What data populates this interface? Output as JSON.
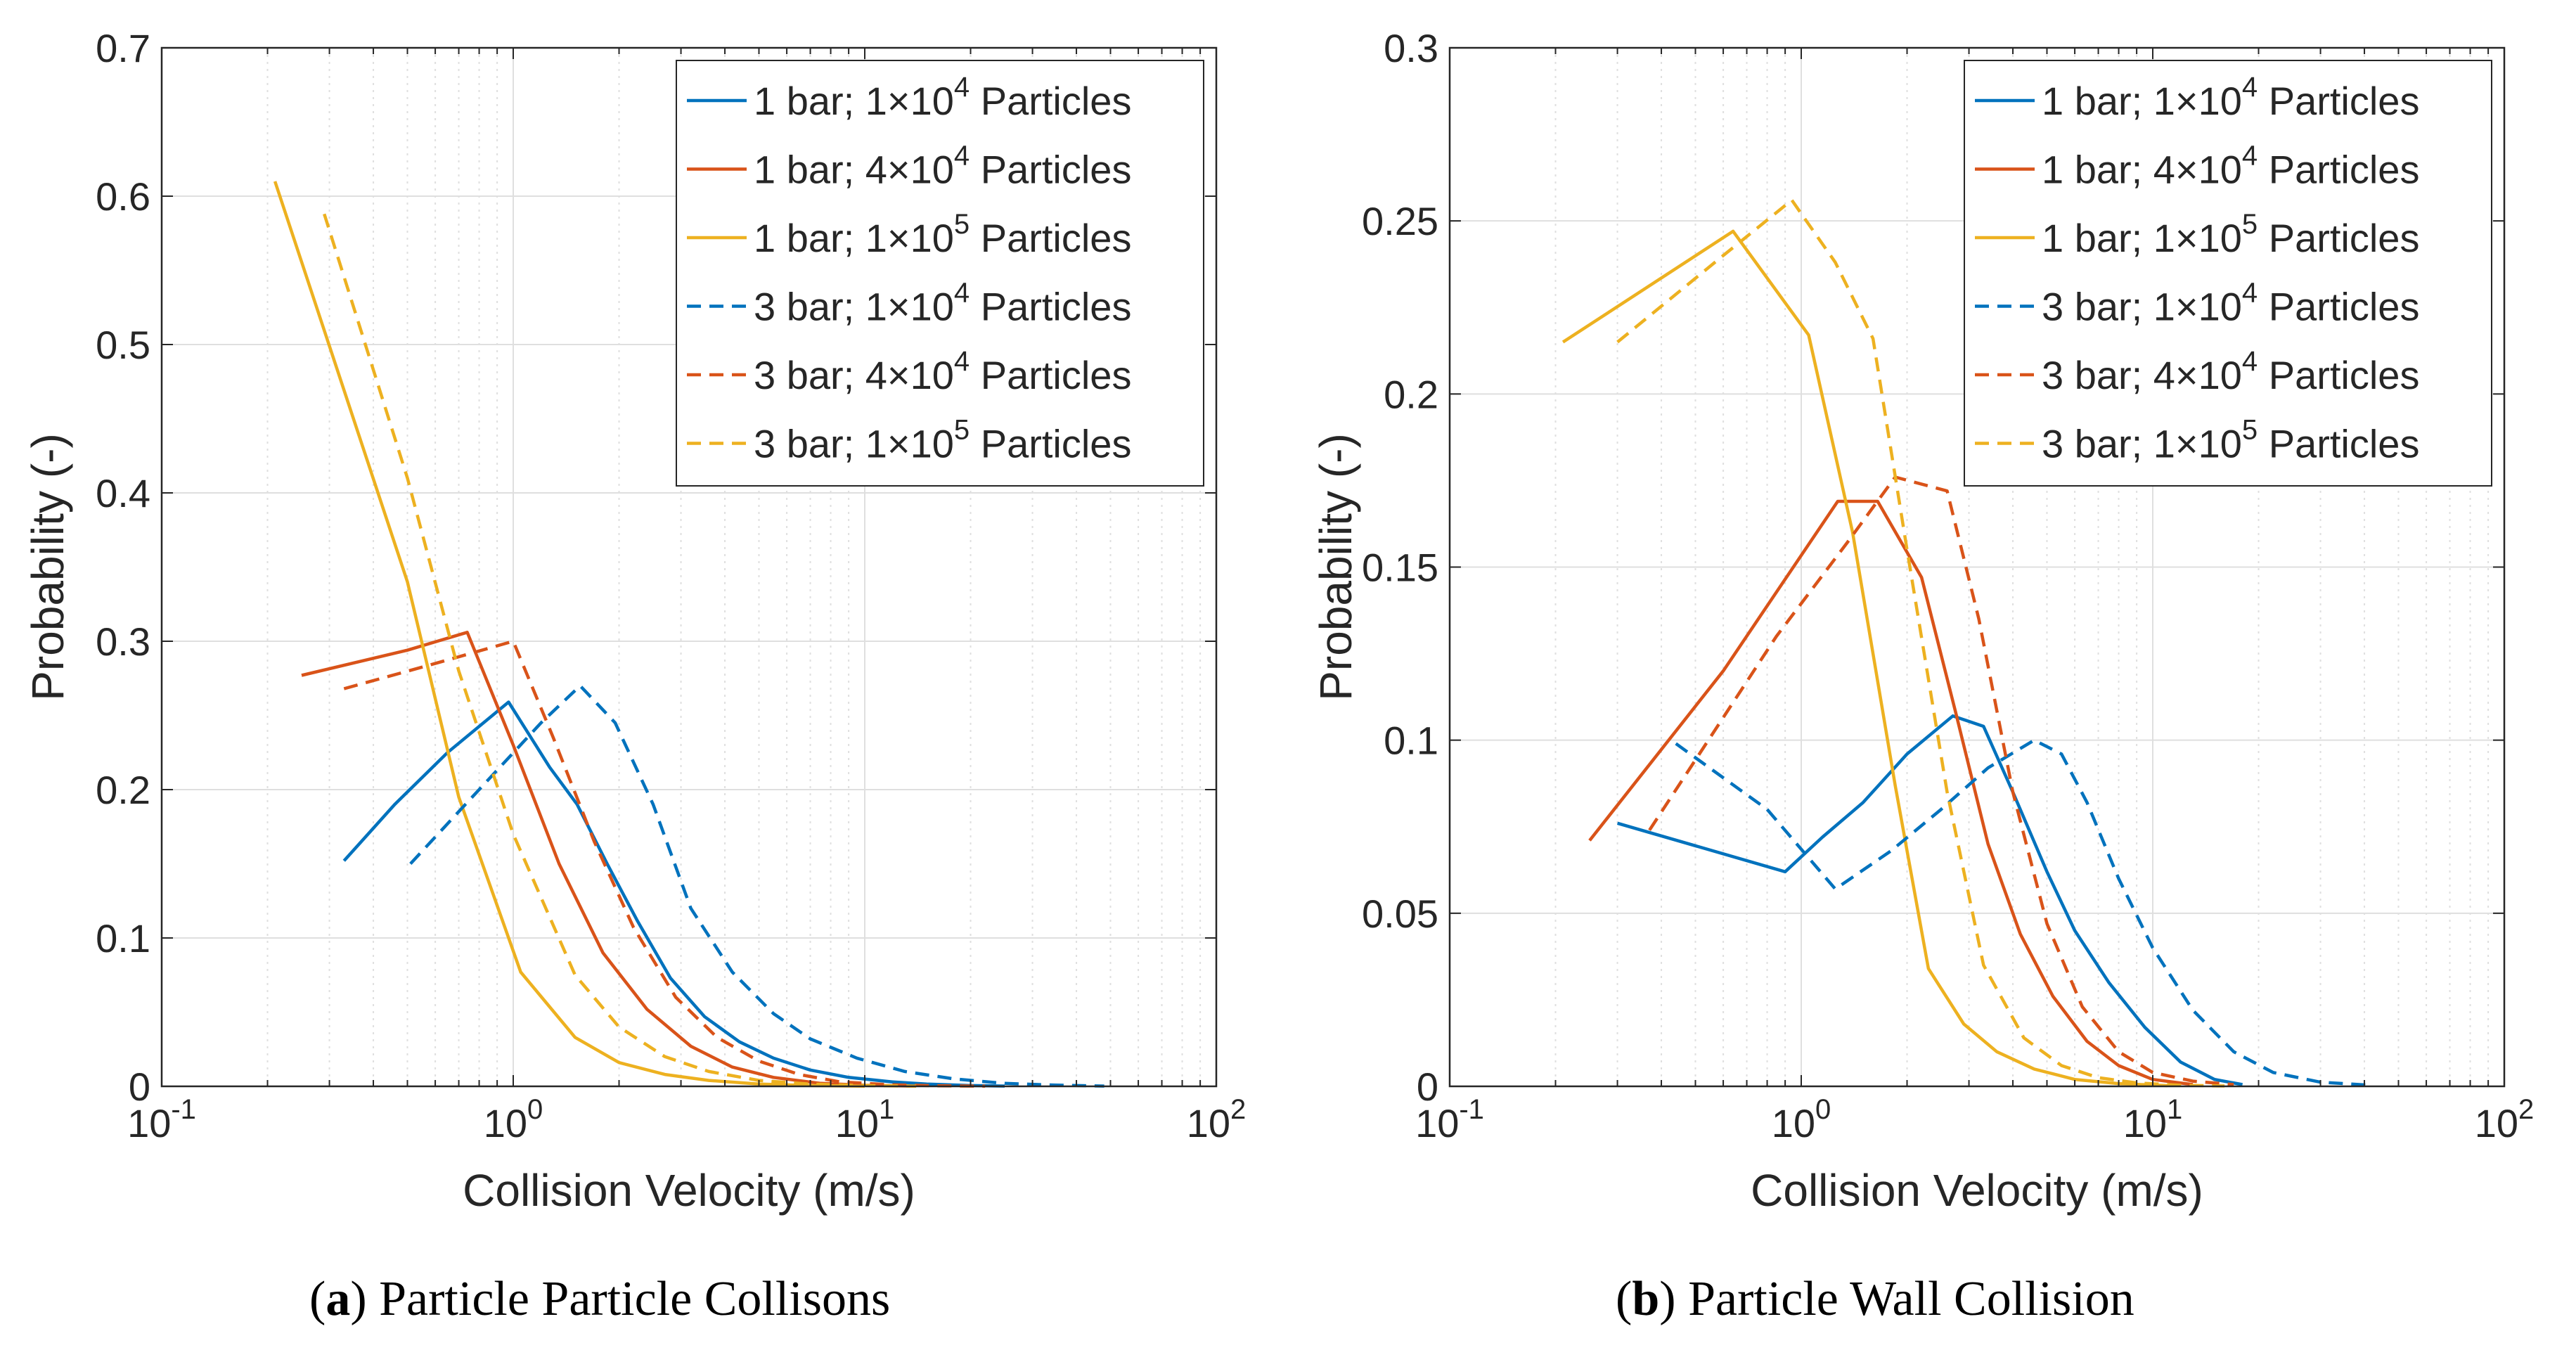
{
  "figure": {
    "captions": [
      {
        "label": "a",
        "text": "Particle Particle Collisons"
      },
      {
        "label": "b",
        "text": "Particle Wall Collision"
      }
    ]
  },
  "colors": {
    "blue": "#0072bd",
    "orange": "#d95319",
    "yellow": "#edb120",
    "axis": "#262626",
    "grid": "#dfdfdf"
  },
  "chart_data": [
    {
      "type": "line",
      "xscale": "log",
      "xlim": [
        0.1,
        100
      ],
      "ylim": [
        0,
        0.7
      ],
      "xticks": [
        0.1,
        1,
        10,
        100
      ],
      "xtick_labels": [
        {
          "base": "10",
          "exp": "-1"
        },
        {
          "base": "10",
          "exp": "0"
        },
        {
          "base": "10",
          "exp": "1"
        },
        {
          "base": "10",
          "exp": "2"
        }
      ],
      "yticks": [
        0,
        0.1,
        0.2,
        0.3,
        0.4,
        0.5,
        0.6,
        0.7
      ],
      "ytick_labels": [
        "0",
        "0.1",
        "0.2",
        "0.3",
        "0.4",
        "0.5",
        "0.6",
        "0.7"
      ],
      "xlabel": "Collision Velocity (m/s)",
      "ylabel": "Probability (-)",
      "grid": true,
      "legend_position": "top-right",
      "series": [
        {
          "name": "1 bar; 1×10^4 Particles",
          "legend": {
            "pre": "1 bar; 1×10",
            "exp": "4",
            "post": " Particles"
          },
          "color": "#0072bd",
          "dash": "solid",
          "x": [
            0.33,
            0.46,
            0.65,
            0.97,
            1.27,
            1.52,
            1.85,
            2.25,
            2.8,
            3.5,
            4.4,
            5.5,
            7,
            9,
            12,
            15,
            20,
            25
          ],
          "y": [
            0.152,
            0.19,
            0.225,
            0.259,
            0.215,
            0.19,
            0.15,
            0.112,
            0.073,
            0.047,
            0.03,
            0.019,
            0.011,
            0.006,
            0.003,
            0.0015,
            0.0005,
            0.0002
          ]
        },
        {
          "name": "1 bar; 4×10^4 Particles",
          "legend": {
            "pre": "1 bar; 4×10",
            "exp": "4",
            "post": " Particles"
          },
          "color": "#d95319",
          "dash": "solid",
          "x": [
            0.25,
            0.5,
            0.74,
            1.0,
            1.35,
            1.8,
            2.4,
            3.2,
            4.2,
            5.5,
            7.5,
            10,
            14
          ],
          "y": [
            0.277,
            0.294,
            0.306,
            0.23,
            0.15,
            0.09,
            0.052,
            0.027,
            0.013,
            0.006,
            0.002,
            0.0007,
            0.0002
          ]
        },
        {
          "name": "1 bar; 1×10^5 Particles",
          "legend": {
            "pre": "1 bar; 1×10",
            "exp": "5",
            "post": " Particles"
          },
          "color": "#edb120",
          "dash": "solid",
          "x": [
            0.21,
            0.5,
            0.7,
            1.05,
            1.5,
            2.0,
            2.7,
            3.6,
            5,
            7,
            10
          ],
          "y": [
            0.61,
            0.34,
            0.195,
            0.077,
            0.033,
            0.016,
            0.008,
            0.004,
            0.0015,
            0.0005,
            0.0001
          ]
        },
        {
          "name": "3 bar; 1×10^4 Particles",
          "legend": {
            "pre": "3 bar; 1×10",
            "exp": "4",
            "post": " Particles"
          },
          "color": "#0072bd",
          "dash": "dashed",
          "x": [
            0.51,
            0.8,
            1.2,
            1.55,
            1.95,
            2.5,
            3.2,
            4.2,
            5.5,
            7,
            9.5,
            13,
            18,
            25,
            35,
            48
          ],
          "y": [
            0.15,
            0.2,
            0.245,
            0.27,
            0.245,
            0.19,
            0.12,
            0.077,
            0.049,
            0.032,
            0.019,
            0.01,
            0.005,
            0.002,
            0.0008,
            0.0002
          ]
        },
        {
          "name": "3 bar; 4×10^4 Particles",
          "legend": {
            "pre": "3 bar; 4×10",
            "exp": "4",
            "post": " Particles"
          },
          "color": "#d95319",
          "dash": "dashed",
          "x": [
            0.33,
            0.6,
            1.0,
            1.3,
            1.7,
            2.2,
            2.9,
            3.8,
            5,
            6.5,
            8.5,
            12,
            16,
            22
          ],
          "y": [
            0.268,
            0.285,
            0.3,
            0.235,
            0.165,
            0.107,
            0.06,
            0.033,
            0.017,
            0.008,
            0.003,
            0.001,
            0.0004,
            0.0001
          ]
        },
        {
          "name": "3 bar; 1×10^5 Particles",
          "legend": {
            "pre": "3 bar; 1×10",
            "exp": "5",
            "post": " Particles"
          },
          "color": "#edb120",
          "dash": "dashed",
          "x": [
            0.29,
            0.5,
            0.7,
            1.0,
            1.5,
            2.0,
            2.7,
            3.6,
            5,
            7,
            10,
            14
          ],
          "y": [
            0.588,
            0.41,
            0.28,
            0.17,
            0.075,
            0.04,
            0.02,
            0.01,
            0.004,
            0.0015,
            0.0005,
            0.0001
          ]
        }
      ]
    },
    {
      "type": "line",
      "xscale": "log",
      "xlim": [
        0.1,
        100
      ],
      "ylim": [
        0,
        0.3
      ],
      "xticks": [
        0.1,
        1,
        10,
        100
      ],
      "xtick_labels": [
        {
          "base": "10",
          "exp": "-1"
        },
        {
          "base": "10",
          "exp": "0"
        },
        {
          "base": "10",
          "exp": "1"
        },
        {
          "base": "10",
          "exp": "2"
        }
      ],
      "yticks": [
        0,
        0.05,
        0.1,
        0.15,
        0.2,
        0.25,
        0.3
      ],
      "ytick_labels": [
        "0",
        "0.05",
        "0.1",
        "0.15",
        "0.2",
        "0.25",
        "0.3"
      ],
      "xlabel": "Collision Velocity (m/s)",
      "ylabel": "Probability (-)",
      "grid": true,
      "legend_position": "top-right",
      "series": [
        {
          "name": "1 bar; 1×10^4 Particles",
          "legend": {
            "pre": "1 bar; 1×10",
            "exp": "4",
            "post": " Particles"
          },
          "color": "#0072bd",
          "dash": "solid",
          "x": [
            0.3,
            0.9,
            1.15,
            1.5,
            2.0,
            2.7,
            3.3,
            4.0,
            5.0,
            6.0,
            7.5,
            9.5,
            12,
            15,
            18
          ],
          "y": [
            0.076,
            0.062,
            0.072,
            0.082,
            0.096,
            0.107,
            0.104,
            0.085,
            0.062,
            0.045,
            0.03,
            0.017,
            0.007,
            0.002,
            0.0005
          ]
        },
        {
          "name": "1 bar; 4×10^4 Particles",
          "legend": {
            "pre": "1 bar; 4×10",
            "exp": "4",
            "post": " Particles"
          },
          "color": "#d95319",
          "dash": "solid",
          "x": [
            0.25,
            0.6,
            1.27,
            1.65,
            2.2,
            2.75,
            3.4,
            4.2,
            5.2,
            6.5,
            8,
            10,
            13
          ],
          "y": [
            0.071,
            0.12,
            0.169,
            0.169,
            0.147,
            0.108,
            0.07,
            0.044,
            0.026,
            0.013,
            0.006,
            0.002,
            0.0005
          ]
        },
        {
          "name": "1 bar; 1×10^5 Particles",
          "legend": {
            "pre": "1 bar; 1×10",
            "exp": "5",
            "post": " Particles"
          },
          "color": "#edb120",
          "dash": "solid",
          "x": [
            0.21,
            0.64,
            1.05,
            1.4,
            1.85,
            2.3,
            2.9,
            3.6,
            4.6,
            6,
            8,
            11
          ],
          "y": [
            0.215,
            0.247,
            0.217,
            0.16,
            0.087,
            0.034,
            0.018,
            0.01,
            0.005,
            0.002,
            0.0008,
            0.0002
          ]
        },
        {
          "name": "3 bar; 1×10^4 Particles",
          "legend": {
            "pre": "3 bar; 1×10",
            "exp": "4",
            "post": " Particles"
          },
          "color": "#0072bd",
          "dash": "dashed",
          "x": [
            0.44,
            0.8,
            1.25,
            1.8,
            2.5,
            3.4,
            4.6,
            5.5,
            6.5,
            8,
            10,
            13,
            17,
            22,
            30,
            42
          ],
          "y": [
            0.099,
            0.08,
            0.057,
            0.068,
            0.08,
            0.092,
            0.1,
            0.096,
            0.082,
            0.06,
            0.04,
            0.022,
            0.01,
            0.004,
            0.0012,
            0.0003
          ]
        },
        {
          "name": "3 bar; 4×10^4 Particles",
          "legend": {
            "pre": "3 bar; 4×10",
            "exp": "4",
            "post": " Particles"
          },
          "color": "#d95319",
          "dash": "dashed",
          "x": [
            0.37,
            0.85,
            1.35,
            1.85,
            2.6,
            3.2,
            4.0,
            5.0,
            6.3,
            8,
            10,
            13,
            17
          ],
          "y": [
            0.074,
            0.13,
            0.157,
            0.176,
            0.172,
            0.135,
            0.085,
            0.047,
            0.023,
            0.01,
            0.004,
            0.0015,
            0.0005
          ]
        },
        {
          "name": "3 bar; 1×10^5 Particles",
          "legend": {
            "pre": "3 bar; 1×10",
            "exp": "5",
            "post": " Particles"
          },
          "color": "#edb120",
          "dash": "dashed",
          "x": [
            0.3,
            0.6,
            0.94,
            1.25,
            1.6,
            2.0,
            2.6,
            3.3,
            4.3,
            5.5,
            7,
            9,
            12,
            16
          ],
          "y": [
            0.215,
            0.24,
            0.256,
            0.238,
            0.216,
            0.155,
            0.085,
            0.035,
            0.014,
            0.006,
            0.0025,
            0.001,
            0.0003,
            0.0001
          ]
        }
      ]
    }
  ]
}
